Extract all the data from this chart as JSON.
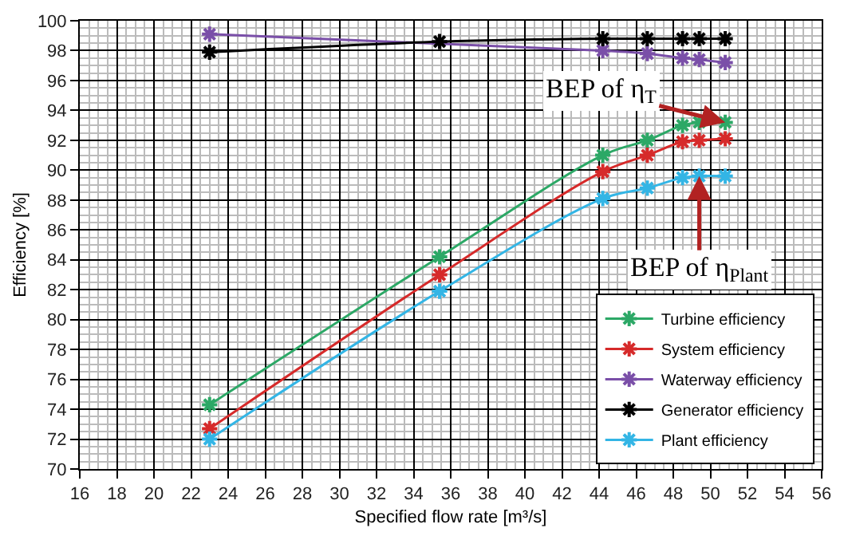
{
  "chart_data": {
    "type": "line",
    "xlabel": "Specified flow rate [m³/s]",
    "ylabel": "Efficiency [%]",
    "x": [
      23,
      35.4,
      44.2,
      46.6,
      48.5,
      49.4,
      50.8
    ],
    "series": [
      {
        "name": "Turbine efficiency",
        "color": "#2ca866",
        "values": [
          74.3,
          84.2,
          91.0,
          92.0,
          93.0,
          93.2,
          93.2
        ]
      },
      {
        "name": "System efficiency",
        "color": "#d62a2a",
        "values": [
          72.7,
          83.0,
          89.9,
          91.0,
          91.9,
          92.0,
          92.1
        ]
      },
      {
        "name": "Waterway efficiency",
        "color": "#7a4fa8",
        "values": [
          99.1,
          null,
          98.0,
          97.8,
          97.5,
          97.4,
          97.2
        ]
      },
      {
        "name": "Generator efficiency",
        "color": "#000000",
        "values": [
          97.9,
          98.6,
          98.8,
          98.8,
          98.8,
          98.8,
          98.8
        ]
      },
      {
        "name": "Plant efficiency",
        "color": "#33b5e5",
        "values": [
          72.0,
          81.9,
          88.1,
          88.8,
          89.5,
          89.6,
          89.6
        ]
      }
    ],
    "xlim": [
      16,
      56
    ],
    "xticks": [
      16,
      18,
      20,
      22,
      24,
      26,
      28,
      30,
      32,
      34,
      36,
      38,
      40,
      42,
      44,
      46,
      48,
      50,
      52,
      54,
      56
    ],
    "ylim": [
      70,
      100
    ],
    "yticks": [
      70,
      72,
      74,
      76,
      78,
      80,
      82,
      84,
      86,
      88,
      90,
      92,
      94,
      96,
      98,
      100
    ],
    "annotations": [
      {
        "text": "BEP of η$_{T}$",
        "x": 50.8,
        "y": 93.2
      },
      {
        "text": "BEP of η$_{Plant}$",
        "x": 49.4,
        "y": 89.6
      }
    ],
    "grid": true,
    "legend": "bottom right",
    "marker": "cross",
    "line_style": "solid"
  }
}
